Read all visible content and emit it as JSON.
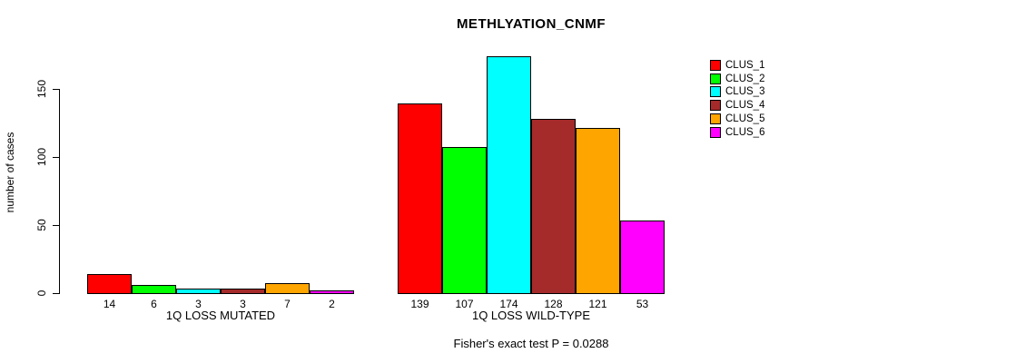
{
  "chart_data": {
    "type": "bar",
    "title": "METHLYATION_CNMF",
    "ylabel": "number of cases",
    "ylim": [
      0,
      175
    ],
    "yticks": [
      0,
      50,
      100,
      150
    ],
    "grid": false,
    "legend_position": "right",
    "categories": [
      "1Q LOSS MUTATED",
      "1Q LOSS WILD-TYPE"
    ],
    "series": [
      {
        "name": "CLUS_1",
        "color": "#ff0000",
        "values": [
          14,
          139
        ]
      },
      {
        "name": "CLUS_2",
        "color": "#00ff00",
        "values": [
          6,
          107
        ]
      },
      {
        "name": "CLUS_3",
        "color": "#00ffff",
        "values": [
          3,
          174
        ]
      },
      {
        "name": "CLUS_4",
        "color": "#a52a2a",
        "values": [
          3,
          128
        ]
      },
      {
        "name": "CLUS_5",
        "color": "#ffa500",
        "values": [
          7,
          121
        ]
      },
      {
        "name": "CLUS_6",
        "color": "#ff00ff",
        "values": [
          2,
          53
        ]
      }
    ],
    "bar_value_labels_shown": true,
    "annotation": "Fisher's exact test P = 0.0288",
    "axis_color": "#000000",
    "bar_border_color": "#000000"
  }
}
